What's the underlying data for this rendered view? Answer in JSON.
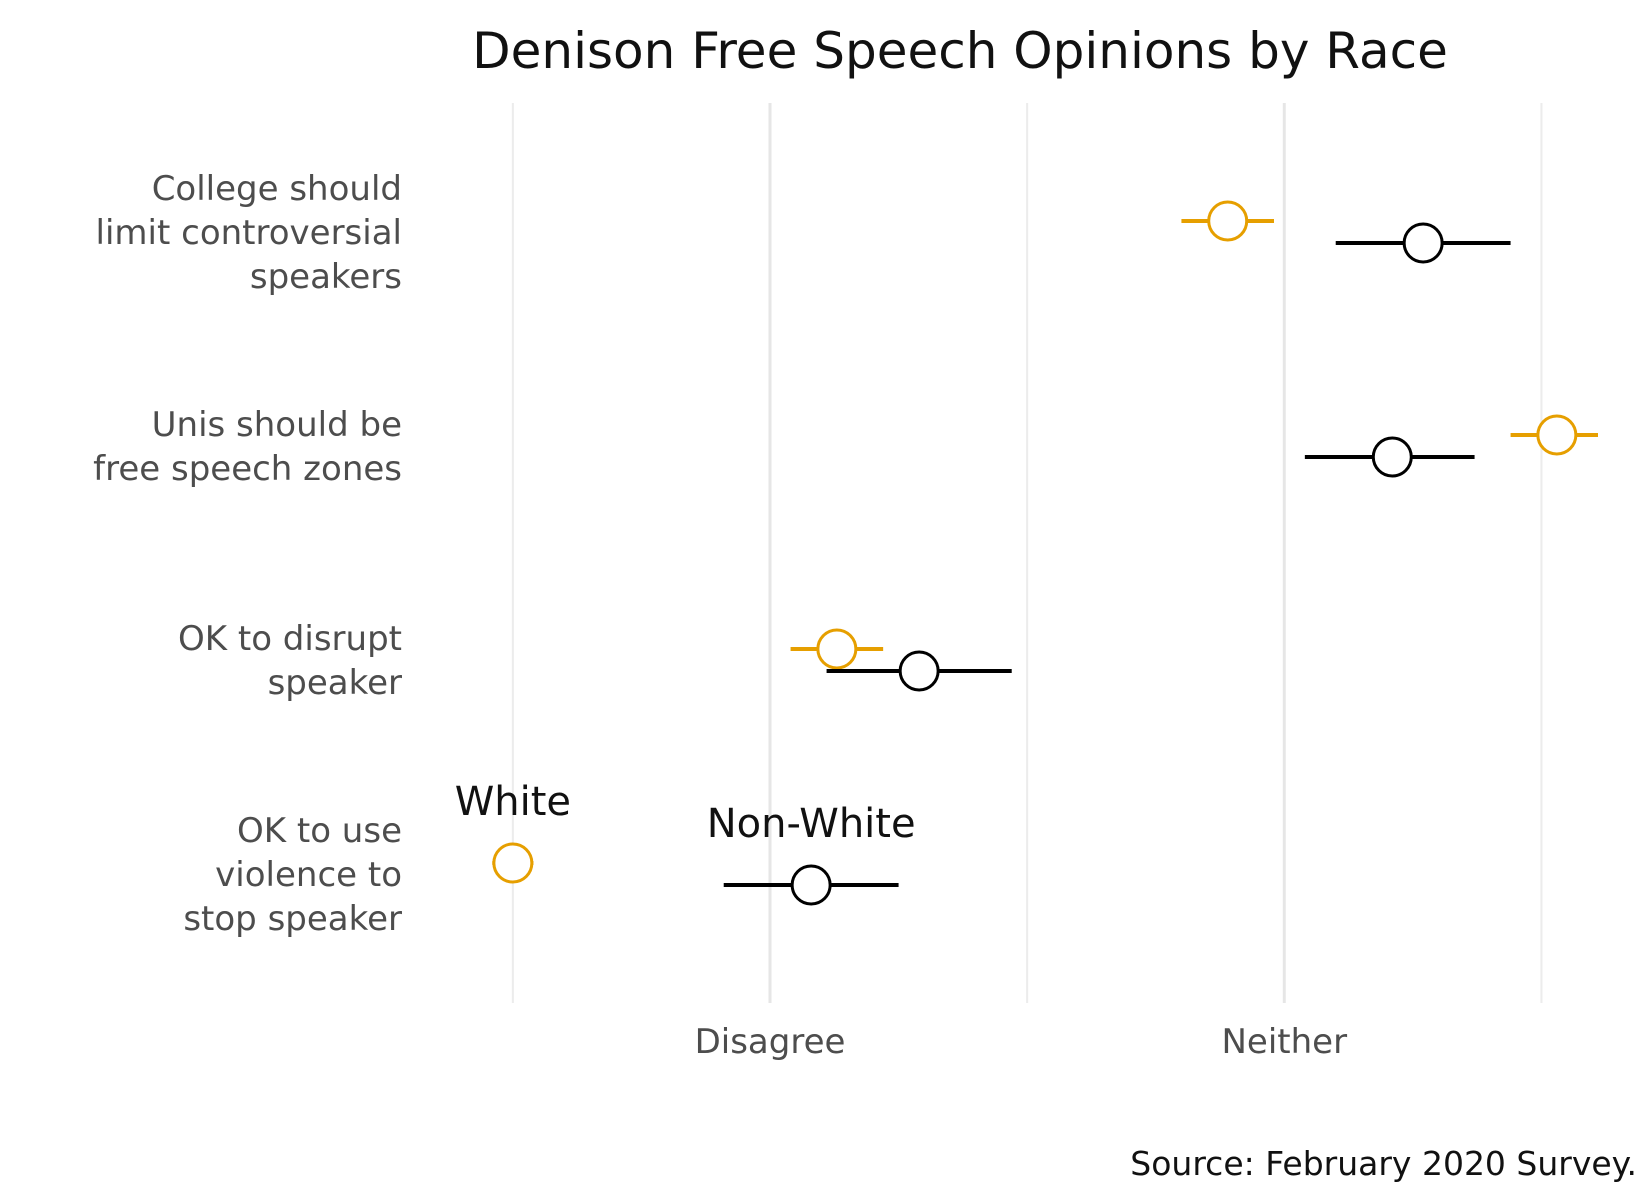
{
  "chart_data": {
    "type": "scatter",
    "title": "Denison Free Speech Opinions by Race",
    "caption": "Source: February 2020 Survey.",
    "xlabel": "",
    "ylabel": "",
    "x_ticks": [
      {
        "value": 2,
        "label": "Disagree"
      },
      {
        "value": 3,
        "label": "Neither"
      }
    ],
    "x_gridlines": [
      1.5,
      2,
      2.5,
      3,
      3.5
    ],
    "xlim": [
      1.3,
      3.68
    ],
    "grid": true,
    "categories": [
      "College should\nlimit controversial\nspeakers",
      "Unis should be\nfree speech zones",
      "OK to disrupt\nspeaker",
      "OK to use\nviolence to\nstop speaker"
    ],
    "series": [
      {
        "name": "White",
        "color": "#E69F00",
        "points": [
          {
            "category": 0,
            "mean": 2.89,
            "low": 2.8,
            "high": 2.98
          },
          {
            "category": 1,
            "mean": 3.53,
            "low": 3.44,
            "high": 3.61
          },
          {
            "category": 2,
            "mean": 2.13,
            "low": 2.04,
            "high": 2.22
          },
          {
            "category": 3,
            "mean": 1.5,
            "low": 1.46,
            "high": 1.54
          }
        ]
      },
      {
        "name": "Non-White",
        "color": "#000000",
        "points": [
          {
            "category": 0,
            "mean": 3.27,
            "low": 3.1,
            "high": 3.44
          },
          {
            "category": 1,
            "mean": 3.21,
            "low": 3.04,
            "high": 3.37
          },
          {
            "category": 2,
            "mean": 2.29,
            "low": 2.11,
            "high": 2.47
          },
          {
            "category": 3,
            "mean": 2.08,
            "low": 1.91,
            "high": 2.25
          }
        ]
      }
    ]
  }
}
